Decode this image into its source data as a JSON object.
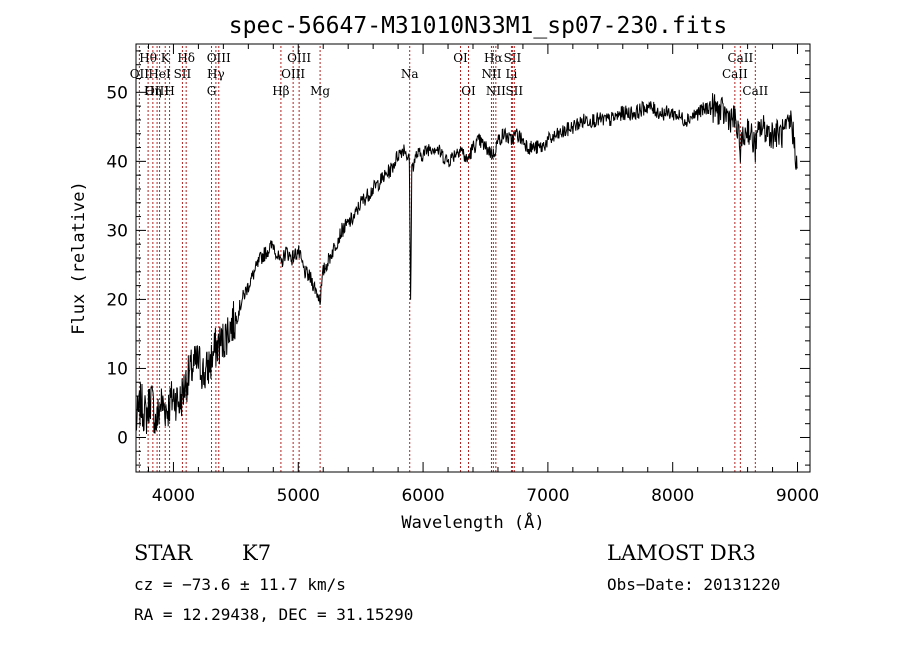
{
  "chart_data": {
    "type": "line",
    "title": "spec-56647-M31010N33M1_sp07-230.fits",
    "xlabel": "Wavelength (Å)",
    "ylabel": "Flux (relative)",
    "xlim": [
      3700,
      9100
    ],
    "ylim": [
      -5,
      57
    ],
    "xticks": [
      4000,
      5000,
      6000,
      7000,
      8000,
      9000
    ],
    "xtick_labels": [
      "4000",
      "5000",
      "6000",
      "7000",
      "8000",
      "9000"
    ],
    "yticks": [
      0,
      10,
      20,
      30,
      40,
      50
    ],
    "ytick_labels": [
      "0",
      "10",
      "20",
      "30",
      "40",
      "50"
    ],
    "series": [
      {
        "name": "flux",
        "x": [
          3700,
          3740,
          3780,
          3820,
          3860,
          3900,
          3950,
          4000,
          4050,
          4100,
          4150,
          4200,
          4250,
          4300,
          4340,
          4400,
          4450,
          4500,
          4550,
          4600,
          4650,
          4700,
          4750,
          4800,
          4861,
          4900,
          4950,
          5000,
          5050,
          5100,
          5150,
          5175,
          5200,
          5250,
          5300,
          5350,
          5400,
          5450,
          5500,
          5550,
          5600,
          5650,
          5700,
          5750,
          5800,
          5850,
          5890,
          5900,
          5910,
          5950,
          6000,
          6050,
          6100,
          6150,
          6200,
          6250,
          6300,
          6350,
          6400,
          6450,
          6500,
          6563,
          6600,
          6650,
          6700,
          6750,
          6800,
          6850,
          6900,
          6950,
          7000,
          7100,
          7200,
          7300,
          7400,
          7500,
          7600,
          7700,
          7800,
          7900,
          8000,
          8100,
          8200,
          8300,
          8400,
          8500,
          8542,
          8600,
          8662,
          8700,
          8800,
          8900,
          8950,
          9000
        ],
        "y": [
          2,
          5,
          3,
          6,
          2,
          5,
          4,
          6,
          5,
          8,
          10,
          11,
          9,
          11,
          13,
          14,
          16,
          17,
          20,
          22,
          24,
          26,
          27,
          28,
          25,
          27,
          26,
          27,
          24,
          23,
          21,
          20,
          24,
          26,
          28,
          30,
          31,
          32,
          34,
          35,
          36,
          37,
          38,
          39,
          41,
          42,
          40,
          19,
          39,
          41,
          41,
          42,
          42,
          41,
          40,
          41,
          42,
          40,
          42,
          43,
          42,
          41,
          43,
          44,
          43,
          44,
          43,
          42,
          42,
          42,
          43,
          44,
          45,
          46,
          46,
          46,
          47,
          47,
          48,
          47,
          47,
          46,
          47,
          48,
          47,
          46,
          42,
          45,
          42,
          45,
          44,
          44,
          46,
          39
        ]
      }
    ],
    "spectral_lines": [
      {
        "label": "Hθ",
        "wl": 3797,
        "row": 1
      },
      {
        "label": "OII",
        "wl": 3727,
        "row": 2
      },
      {
        "label": "OIII",
        "wl": 3869,
        "row": 3
      },
      {
        "label": "K",
        "wl": 3934,
        "row": 1
      },
      {
        "label": "HeI",
        "wl": 3889,
        "row": 2
      },
      {
        "label": "Hη",
        "wl": 3835,
        "row": 3
      },
      {
        "label": "Hδ",
        "wl": 4102,
        "row": 1
      },
      {
        "label": "SII",
        "wl": 4072,
        "row": 2
      },
      {
        "label": "H",
        "wl": 3969,
        "row": 3
      },
      {
        "label": "OIII",
        "wl": 4363,
        "row": 1
      },
      {
        "label": "Hγ",
        "wl": 4340,
        "row": 2
      },
      {
        "label": "G",
        "wl": 4305,
        "row": 3
      },
      {
        "label": "OIII",
        "wl": 5007,
        "row": 1
      },
      {
        "label": "OIII",
        "wl": 4959,
        "row": 2
      },
      {
        "label": "Hβ",
        "wl": 4861,
        "row": 3
      },
      {
        "label": "Mg",
        "wl": 5175,
        "row": 3
      },
      {
        "label": "Na",
        "wl": 5893,
        "row": 2
      },
      {
        "label": "OI",
        "wl": 6300,
        "row": 1
      },
      {
        "label": "OI",
        "wl": 6364,
        "row": 3
      },
      {
        "label": "Hα",
        "wl": 6563,
        "row": 1
      },
      {
        "label": "SII",
        "wl": 6716,
        "row": 1
      },
      {
        "label": "NII",
        "wl": 6548,
        "row": 2
      },
      {
        "label": "Li",
        "wl": 6708,
        "row": 2
      },
      {
        "label": "NII",
        "wl": 6583,
        "row": 3
      },
      {
        "label": "SII",
        "wl": 6731,
        "row": 3
      },
      {
        "label": "CaII",
        "wl": 8542,
        "row": 1
      },
      {
        "label": "CaII",
        "wl": 8498,
        "row": 2
      },
      {
        "label": "CaII",
        "wl": 8662,
        "row": 3
      }
    ]
  },
  "info": {
    "class": "STAR",
    "subclass": "K7",
    "cz": "cz = −73.6 ± 11.7 km/s",
    "radec": "RA =  12.29438, DEC =  31.15290",
    "survey": "LAMOST DR3",
    "obs_date": "Obs−Date: 20131220"
  },
  "colors": {
    "axis": "#000000",
    "spectrum": "#000000",
    "line_marker": "#b22222"
  }
}
